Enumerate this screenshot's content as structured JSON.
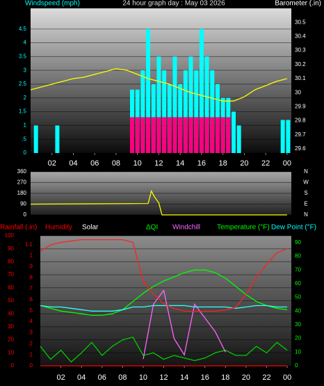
{
  "chart_data": [
    {
      "type": "bar",
      "title": "24 hour graph day : May 03 2026",
      "y_label": "Windspeed (mph)",
      "y2_label": "Barometer (.in)",
      "y_color": "#00ffff",
      "y2_color": "#ffffff",
      "grid": true,
      "x": [
        0.5,
        2.5,
        9.5,
        10,
        10.5,
        11,
        11.5,
        12,
        12.5,
        13,
        13.5,
        14,
        14.5,
        15,
        15.5,
        16,
        16.5,
        17,
        17.5,
        18,
        18.5,
        19,
        19.5,
        23.6,
        24.1
      ],
      "xlim": [
        0,
        24.4
      ],
      "ylim": [
        0,
        5.25
      ],
      "y2lim": [
        29.57,
        30.6
      ],
      "yticks": [
        0,
        {
          "value": 0.5,
          "label": ".5"
        },
        1,
        1.5,
        2,
        2.5,
        3,
        3.5,
        4,
        4.5
      ],
      "y2ticks": [
        29.6,
        29.7,
        29.8,
        29.9,
        {
          "value": 30,
          "label": "30"
        },
        30.1,
        30.2,
        30.3,
        30.4,
        30.5
      ],
      "xticks": [
        {
          "value": 2,
          "label": "02"
        },
        {
          "value": 4,
          "label": "04"
        },
        {
          "value": 6,
          "label": "06"
        },
        {
          "value": 8,
          "label": "08"
        },
        10,
        12,
        14,
        16,
        18,
        20,
        22,
        {
          "value": 24,
          "label": "00"
        }
      ],
      "series": [
        {
          "color": "#00ffff",
          "values": [
            1,
            1,
            2.3,
            2.3,
            3,
            4.5,
            2.5,
            3.5,
            3,
            2.5,
            3.5,
            2.5,
            3,
            3.5,
            3,
            4.5,
            3.5,
            3,
            2.5,
            2,
            2,
            1.5,
            1,
            1.2,
            1.2
          ]
        },
        {
          "color": "#ff0080",
          "values": [
            0,
            0,
            1.3,
            1.3,
            1.3,
            1.3,
            1.3,
            1.3,
            1.3,
            1.3,
            1.3,
            1.3,
            1.3,
            1.3,
            1.3,
            1.3,
            1.3,
            1.3,
            1.3,
            1.3,
            1.3,
            0,
            0,
            0,
            0
          ]
        },
        {
          "type": "line",
          "axis": "y2",
          "color": "#ffff00",
          "x": [
            0,
            1,
            2,
            3,
            4,
            5,
            6,
            7,
            8,
            9,
            10,
            11,
            12,
            13,
            14,
            15,
            16,
            17,
            18,
            19,
            20,
            21,
            22,
            23,
            24
          ],
          "values": [
            30.02,
            30.04,
            30.06,
            30.08,
            30.1,
            30.11,
            30.13,
            30.15,
            30.17,
            30.16,
            30.13,
            30.1,
            30.08,
            30.06,
            30.03,
            30.0,
            29.98,
            29.96,
            29.94,
            29.94,
            29.97,
            30.02,
            30.05,
            30.08,
            30.1
          ]
        }
      ]
    },
    {
      "type": "line",
      "y_color": "#ffffff",
      "y2_color": "#ffffff",
      "grid": true,
      "x": [
        0,
        11,
        11.3,
        11.6,
        12,
        12.3,
        24
      ],
      "xlim": [
        0,
        24.4
      ],
      "ylim": [
        0,
        360
      ],
      "y2lim": [
        0,
        360
      ],
      "yticks": [
        0,
        90,
        180,
        270,
        360
      ],
      "y2ticks": [
        {
          "value": 360,
          "label": "N"
        },
        {
          "value": 270,
          "label": "W"
        },
        {
          "value": 180,
          "label": "S"
        },
        {
          "value": 90,
          "label": "E"
        },
        {
          "value": 0,
          "label": "N"
        }
      ],
      "series": [
        {
          "color": "#ffff00",
          "values": [
            90,
            95,
            200,
            150,
            100,
            0,
            0
          ]
        }
      ]
    },
    {
      "type": "line",
      "y_color": "#ff0000",
      "y2_color": "#00ff00",
      "y3_color": "#ff0000",
      "grid": true,
      "labels": [
        {
          "text": "Rainfall (.in)",
          "color": "#ff0000"
        },
        {
          "text": "Humidity",
          "color": "#ff0000"
        },
        {
          "text": "Solar",
          "color": "#ffffff"
        },
        {
          "text": "ΔQI",
          "color": "#00ff00"
        },
        {
          "text": "Windchill",
          "color": "#ff66ff"
        },
        {
          "text": "Temperature (°F)",
          "color": "#00ff00"
        },
        {
          "text": "Dew Point (°F)",
          "color": "#00ffff"
        }
      ],
      "x": [
        0,
        1,
        2,
        3,
        4,
        5,
        6,
        7,
        8,
        9,
        10,
        11,
        12,
        13,
        14,
        15,
        16,
        17,
        18,
        19,
        20,
        21,
        22,
        23,
        24
      ],
      "xlim": [
        0,
        24.4
      ],
      "ylim": [
        0,
        100
      ],
      "y2lim": [
        0,
        95
      ],
      "y3lim": [
        0,
        1.18
      ],
      "yticks": [
        0,
        10,
        20,
        30,
        40,
        50,
        60,
        70,
        80,
        90,
        100
      ],
      "y2ticks": [
        0,
        10,
        20,
        30,
        40,
        50,
        60,
        70,
        80,
        90
      ],
      "y3ticks": [
        0,
        {
          "value": 0.1,
          "label": ".1"
        },
        {
          "value": 0.2,
          "label": ".2"
        },
        {
          "value": 0.3,
          "label": ".3"
        },
        {
          "value": 0.4,
          "label": ".4"
        },
        {
          "value": 0.5,
          "label": ".5"
        },
        {
          "value": 0.6,
          "label": ".6"
        },
        {
          "value": 0.7,
          "label": ".7"
        },
        {
          "value": 0.8,
          "label": ".8"
        },
        {
          "value": 0.9,
          "label": ".9"
        },
        1,
        1.1
      ],
      "xticks": [
        {
          "value": 2,
          "label": "02"
        },
        {
          "value": 4,
          "label": "04"
        },
        {
          "value": 6,
          "label": "06"
        },
        {
          "value": 8,
          "label": "08"
        },
        10,
        12,
        14,
        16,
        18,
        20,
        22,
        {
          "value": 24,
          "label": "00"
        }
      ],
      "series": [
        {
          "color": "#00cc00",
          "values": [
            15,
            5,
            12,
            3,
            10,
            18,
            8,
            15,
            20,
            22,
            8,
            10,
            5,
            8,
            6,
            4,
            6,
            10,
            12,
            8,
            8,
            15,
            10,
            18,
            12
          ]
        },
        {
          "color": "#ff66ff",
          "axis": "y2",
          "values": [
            null,
            null,
            null,
            null,
            null,
            null,
            null,
            null,
            null,
            null,
            5,
            45,
            55,
            20,
            8,
            45,
            35,
            25,
            10,
            null,
            null,
            null,
            null,
            null,
            null
          ]
        },
        {
          "color": "#ff0000",
          "axis": "y3",
          "values": [
            0,
            0,
            0,
            0,
            0,
            0,
            0,
            0,
            0,
            0,
            0,
            0,
            0,
            0,
            0,
            0,
            0,
            0,
            0,
            0,
            0,
            0,
            0,
            0,
            0
          ]
        },
        {
          "color": "#00ff00",
          "axis": "y2",
          "values": [
            44,
            42,
            40,
            39,
            38,
            37,
            37,
            38,
            41,
            47,
            53,
            58,
            62,
            65,
            68,
            70,
            70,
            68,
            64,
            58,
            52,
            47,
            44,
            42,
            41
          ]
        },
        {
          "color": "#33ffff",
          "axis": "y2",
          "values": [
            44,
            43,
            43,
            42,
            41,
            40,
            40,
            40,
            41,
            43,
            43,
            44,
            44,
            44,
            44,
            43,
            43,
            43,
            43,
            42,
            43,
            44,
            44,
            43,
            43
          ]
        },
        {
          "color": "#ff2020",
          "values": [
            88,
            93,
            95,
            96,
            97,
            97,
            97,
            97,
            97,
            95,
            65,
            55,
            48,
            44,
            42,
            42,
            42,
            42,
            43,
            45,
            55,
            68,
            78,
            87,
            90
          ]
        }
      ]
    }
  ]
}
